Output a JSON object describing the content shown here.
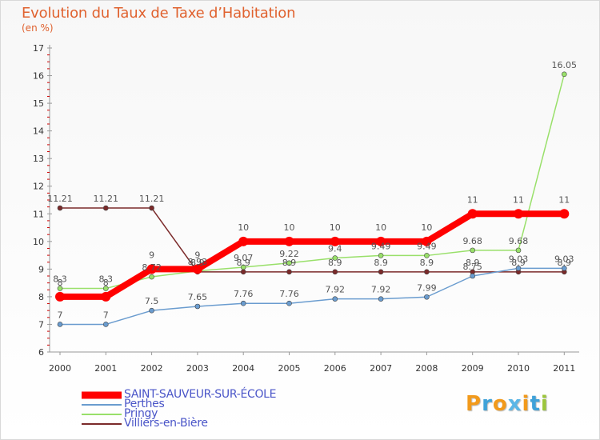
{
  "title": "Evolution du Taux de Taxe d’Habitation",
  "subtitle": "(en %)",
  "logo": {
    "text": "Proxiti",
    "letter_colors": [
      "#f29a1b",
      "#3fa2d9",
      "#f29a1b",
      "#5bb6e6",
      "#f29a1b",
      "#3fa2d9",
      "#9cc63b"
    ]
  },
  "chart_data": {
    "type": "line",
    "title": "Evolution du Taux de Taxe d’Habitation",
    "ylabel": "(en %)",
    "xlabel": "",
    "ylim": [
      6,
      17
    ],
    "yticks": [
      6,
      7,
      8,
      9,
      10,
      11,
      12,
      13,
      14,
      15,
      16,
      17
    ],
    "categories": [
      "2000",
      "2001",
      "2002",
      "2003",
      "2004",
      "2005",
      "2006",
      "2007",
      "2008",
      "2009",
      "2010",
      "2011"
    ],
    "grid": false,
    "legend_position": "bottom-left",
    "series": [
      {
        "name": "SAINT-SAUVEUR-SUR-ÉCOLE",
        "color": "#ff0000",
        "values": [
          8,
          8,
          9,
          9,
          10,
          10,
          10,
          10,
          10,
          11,
          11,
          11
        ],
        "labels": [
          "8",
          "8",
          "9",
          "9",
          "10",
          "10",
          "10",
          "10",
          "10",
          "11",
          "11",
          "11"
        ]
      },
      {
        "name": "Perthes",
        "color": "#6a9ccf",
        "values": [
          7,
          7,
          7.5,
          7.65,
          7.76,
          7.76,
          7.92,
          7.92,
          7.99,
          8.75,
          9.03,
          9.03
        ],
        "labels": [
          "7",
          "7",
          "7.5",
          "7.65",
          "7.76",
          "7.76",
          "7.92",
          "7.92",
          "7.99",
          "8.75",
          "9.03",
          "9.03"
        ]
      },
      {
        "name": "Pringy",
        "color": "#99e06a",
        "values": [
          8.3,
          8.3,
          8.72,
          8.93,
          9.07,
          9.22,
          9.4,
          9.49,
          9.49,
          9.68,
          9.68,
          16.05
        ],
        "labels": [
          "8.3",
          "8.3",
          "8.72",
          "8.93",
          "9.07",
          "9.22",
          "9.4",
          "9.49",
          "9.49",
          "9.68",
          "9.68",
          "16.05"
        ]
      },
      {
        "name": "Villiers-en-Bière",
        "color": "#7b2a2a",
        "values": [
          11.21,
          11.21,
          11.21,
          8.9,
          8.9,
          8.9,
          8.9,
          8.9,
          8.9,
          8.9,
          8.9,
          8.9
        ],
        "labels": [
          "11.21",
          "11.21",
          "11.21",
          "8.9",
          "8.9",
          "8.9",
          "8.9",
          "8.9",
          "8.9",
          "8.9",
          "8.9",
          "8.9"
        ]
      }
    ]
  }
}
